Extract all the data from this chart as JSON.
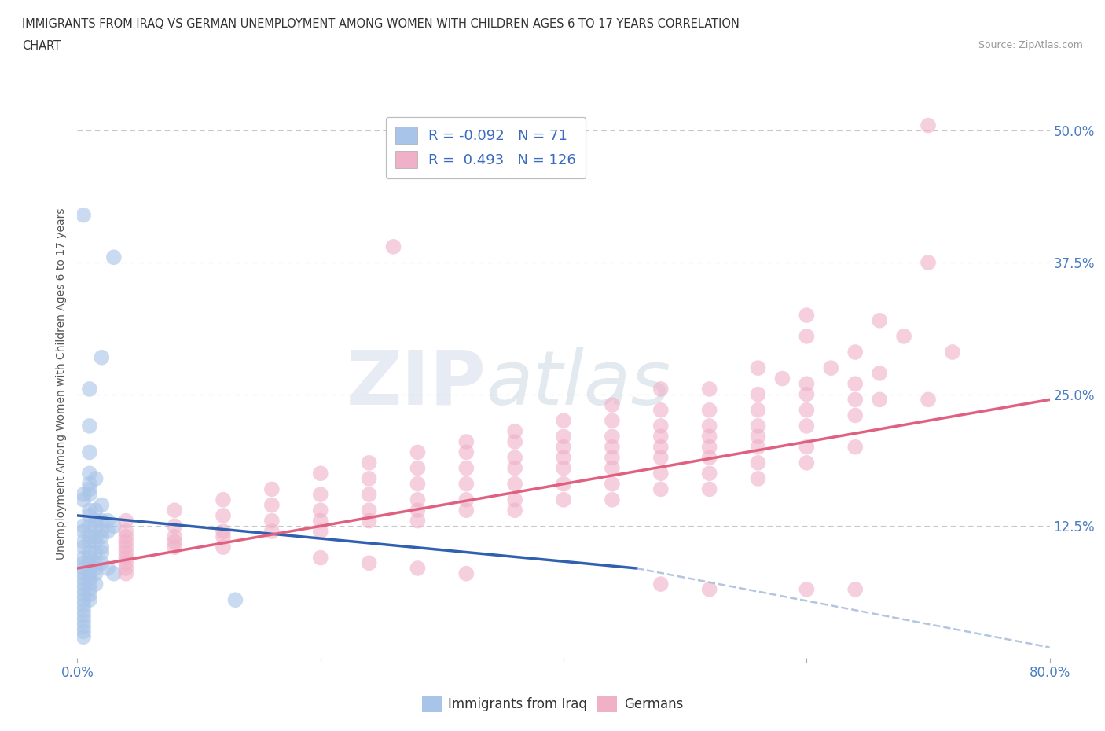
{
  "title_line1": "IMMIGRANTS FROM IRAQ VS GERMAN UNEMPLOYMENT AMONG WOMEN WITH CHILDREN AGES 6 TO 17 YEARS CORRELATION",
  "title_line2": "CHART",
  "source_text": "Source: ZipAtlas.com",
  "ylabel": "Unemployment Among Women with Children Ages 6 to 17 years",
  "xlim": [
    0.0,
    0.8
  ],
  "ylim": [
    0.0,
    0.52
  ],
  "xtick_labels": [
    "0.0%",
    "80.0%"
  ],
  "ytick_labels": [
    "12.5%",
    "25.0%",
    "37.5%",
    "50.0%"
  ],
  "ytick_positions": [
    0.125,
    0.25,
    0.375,
    0.5
  ],
  "grid_color": "#c8c8c8",
  "grid_style": "--",
  "background_color": "#ffffff",
  "watermark_zip": "ZIP",
  "watermark_atlas": "atlas",
  "blue_color": "#a8c4e8",
  "pink_color": "#f0b0c8",
  "blue_line_color": "#3060b0",
  "pink_line_color": "#e06080",
  "blue_dash_color": "#a0b8d8",
  "legend1_r": "-0.092",
  "legend1_n": "71",
  "legend2_r": "0.493",
  "legend2_n": "126",
  "blue_scatter": [
    [
      0.005,
      0.42
    ],
    [
      0.03,
      0.38
    ],
    [
      0.02,
      0.285
    ],
    [
      0.01,
      0.255
    ],
    [
      0.01,
      0.22
    ],
    [
      0.01,
      0.195
    ],
    [
      0.01,
      0.175
    ],
    [
      0.015,
      0.17
    ],
    [
      0.01,
      0.165
    ],
    [
      0.01,
      0.16
    ],
    [
      0.005,
      0.155
    ],
    [
      0.01,
      0.155
    ],
    [
      0.005,
      0.15
    ],
    [
      0.01,
      0.14
    ],
    [
      0.015,
      0.14
    ],
    [
      0.02,
      0.145
    ],
    [
      0.01,
      0.135
    ],
    [
      0.015,
      0.13
    ],
    [
      0.02,
      0.13
    ],
    [
      0.025,
      0.13
    ],
    [
      0.005,
      0.125
    ],
    [
      0.01,
      0.125
    ],
    [
      0.015,
      0.125
    ],
    [
      0.02,
      0.12
    ],
    [
      0.025,
      0.12
    ],
    [
      0.03,
      0.125
    ],
    [
      0.005,
      0.12
    ],
    [
      0.01,
      0.115
    ],
    [
      0.015,
      0.115
    ],
    [
      0.02,
      0.115
    ],
    [
      0.005,
      0.11
    ],
    [
      0.01,
      0.11
    ],
    [
      0.015,
      0.11
    ],
    [
      0.02,
      0.105
    ],
    [
      0.005,
      0.105
    ],
    [
      0.01,
      0.1
    ],
    [
      0.015,
      0.1
    ],
    [
      0.02,
      0.1
    ],
    [
      0.005,
      0.095
    ],
    [
      0.01,
      0.095
    ],
    [
      0.005,
      0.09
    ],
    [
      0.01,
      0.09
    ],
    [
      0.015,
      0.09
    ],
    [
      0.02,
      0.09
    ],
    [
      0.005,
      0.085
    ],
    [
      0.01,
      0.085
    ],
    [
      0.015,
      0.085
    ],
    [
      0.005,
      0.08
    ],
    [
      0.01,
      0.08
    ],
    [
      0.015,
      0.08
    ],
    [
      0.005,
      0.075
    ],
    [
      0.01,
      0.075
    ],
    [
      0.005,
      0.07
    ],
    [
      0.01,
      0.07
    ],
    [
      0.015,
      0.07
    ],
    [
      0.005,
      0.065
    ],
    [
      0.01,
      0.065
    ],
    [
      0.005,
      0.06
    ],
    [
      0.01,
      0.06
    ],
    [
      0.005,
      0.055
    ],
    [
      0.01,
      0.055
    ],
    [
      0.005,
      0.05
    ],
    [
      0.005,
      0.045
    ],
    [
      0.005,
      0.04
    ],
    [
      0.005,
      0.035
    ],
    [
      0.005,
      0.03
    ],
    [
      0.005,
      0.025
    ],
    [
      0.005,
      0.02
    ],
    [
      0.025,
      0.085
    ],
    [
      0.03,
      0.08
    ],
    [
      0.13,
      0.055
    ]
  ],
  "pink_scatter": [
    [
      0.7,
      0.505
    ],
    [
      0.26,
      0.39
    ],
    [
      0.7,
      0.375
    ],
    [
      0.6,
      0.325
    ],
    [
      0.66,
      0.32
    ],
    [
      0.6,
      0.305
    ],
    [
      0.68,
      0.305
    ],
    [
      0.64,
      0.29
    ],
    [
      0.72,
      0.29
    ],
    [
      0.56,
      0.275
    ],
    [
      0.62,
      0.275
    ],
    [
      0.66,
      0.27
    ],
    [
      0.58,
      0.265
    ],
    [
      0.6,
      0.26
    ],
    [
      0.64,
      0.26
    ],
    [
      0.48,
      0.255
    ],
    [
      0.52,
      0.255
    ],
    [
      0.56,
      0.25
    ],
    [
      0.6,
      0.25
    ],
    [
      0.64,
      0.245
    ],
    [
      0.66,
      0.245
    ],
    [
      0.7,
      0.245
    ],
    [
      0.44,
      0.24
    ],
    [
      0.48,
      0.235
    ],
    [
      0.52,
      0.235
    ],
    [
      0.56,
      0.235
    ],
    [
      0.6,
      0.235
    ],
    [
      0.64,
      0.23
    ],
    [
      0.4,
      0.225
    ],
    [
      0.44,
      0.225
    ],
    [
      0.48,
      0.22
    ],
    [
      0.52,
      0.22
    ],
    [
      0.56,
      0.22
    ],
    [
      0.6,
      0.22
    ],
    [
      0.36,
      0.215
    ],
    [
      0.4,
      0.21
    ],
    [
      0.44,
      0.21
    ],
    [
      0.48,
      0.21
    ],
    [
      0.52,
      0.21
    ],
    [
      0.56,
      0.21
    ],
    [
      0.32,
      0.205
    ],
    [
      0.36,
      0.205
    ],
    [
      0.4,
      0.2
    ],
    [
      0.44,
      0.2
    ],
    [
      0.48,
      0.2
    ],
    [
      0.52,
      0.2
    ],
    [
      0.56,
      0.2
    ],
    [
      0.6,
      0.2
    ],
    [
      0.64,
      0.2
    ],
    [
      0.28,
      0.195
    ],
    [
      0.32,
      0.195
    ],
    [
      0.36,
      0.19
    ],
    [
      0.4,
      0.19
    ],
    [
      0.44,
      0.19
    ],
    [
      0.48,
      0.19
    ],
    [
      0.52,
      0.19
    ],
    [
      0.56,
      0.185
    ],
    [
      0.6,
      0.185
    ],
    [
      0.24,
      0.185
    ],
    [
      0.28,
      0.18
    ],
    [
      0.32,
      0.18
    ],
    [
      0.36,
      0.18
    ],
    [
      0.4,
      0.18
    ],
    [
      0.44,
      0.18
    ],
    [
      0.48,
      0.175
    ],
    [
      0.52,
      0.175
    ],
    [
      0.56,
      0.17
    ],
    [
      0.2,
      0.175
    ],
    [
      0.24,
      0.17
    ],
    [
      0.28,
      0.165
    ],
    [
      0.32,
      0.165
    ],
    [
      0.36,
      0.165
    ],
    [
      0.4,
      0.165
    ],
    [
      0.44,
      0.165
    ],
    [
      0.48,
      0.16
    ],
    [
      0.52,
      0.16
    ],
    [
      0.16,
      0.16
    ],
    [
      0.2,
      0.155
    ],
    [
      0.24,
      0.155
    ],
    [
      0.28,
      0.15
    ],
    [
      0.32,
      0.15
    ],
    [
      0.36,
      0.15
    ],
    [
      0.4,
      0.15
    ],
    [
      0.44,
      0.15
    ],
    [
      0.12,
      0.15
    ],
    [
      0.16,
      0.145
    ],
    [
      0.2,
      0.14
    ],
    [
      0.24,
      0.14
    ],
    [
      0.28,
      0.14
    ],
    [
      0.32,
      0.14
    ],
    [
      0.36,
      0.14
    ],
    [
      0.08,
      0.14
    ],
    [
      0.12,
      0.135
    ],
    [
      0.16,
      0.13
    ],
    [
      0.2,
      0.13
    ],
    [
      0.24,
      0.13
    ],
    [
      0.28,
      0.13
    ],
    [
      0.04,
      0.13
    ],
    [
      0.08,
      0.125
    ],
    [
      0.12,
      0.12
    ],
    [
      0.16,
      0.12
    ],
    [
      0.2,
      0.12
    ],
    [
      0.04,
      0.12
    ],
    [
      0.08,
      0.115
    ],
    [
      0.12,
      0.115
    ],
    [
      0.04,
      0.115
    ],
    [
      0.08,
      0.11
    ],
    [
      0.04,
      0.11
    ],
    [
      0.08,
      0.105
    ],
    [
      0.04,
      0.105
    ],
    [
      0.04,
      0.1
    ],
    [
      0.04,
      0.095
    ],
    [
      0.04,
      0.09
    ],
    [
      0.04,
      0.085
    ],
    [
      0.04,
      0.08
    ],
    [
      0.6,
      0.065
    ],
    [
      0.64,
      0.065
    ],
    [
      0.48,
      0.07
    ],
    [
      0.52,
      0.065
    ],
    [
      0.28,
      0.085
    ],
    [
      0.32,
      0.08
    ],
    [
      0.2,
      0.095
    ],
    [
      0.24,
      0.09
    ],
    [
      0.12,
      0.105
    ]
  ],
  "blue_trend": {
    "x_start": 0.0,
    "y_start": 0.135,
    "x_end": 0.46,
    "y_end": 0.085
  },
  "pink_trend": {
    "x_start": 0.0,
    "y_start": 0.085,
    "x_end": 0.8,
    "y_end": 0.245
  },
  "blue_dash_trend": {
    "x_start": 0.46,
    "y_start": 0.085,
    "x_end": 0.8,
    "y_end": 0.01
  }
}
